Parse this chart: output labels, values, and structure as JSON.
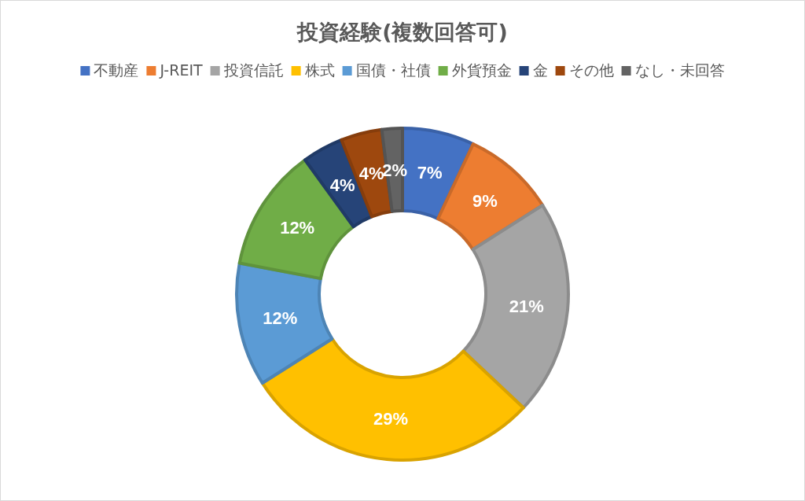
{
  "chart_data": {
    "type": "donut",
    "title": "投資経験(複数回答可)",
    "categories": [
      "不動産",
      "J-REIT",
      "投資信託",
      "株式",
      "国債・社債",
      "外貨預金",
      "金",
      "その他",
      "なし・未回答"
    ],
    "values": [
      7,
      9,
      21,
      29,
      12,
      12,
      4,
      4,
      2
    ],
    "colors": [
      "#4472c4",
      "#ed7d31",
      "#a5a5a5",
      "#ffc000",
      "#5b9bd5",
      "#70ad47",
      "#264478",
      "#9e480e",
      "#636363"
    ],
    "value_labels": [
      "7%",
      "9%",
      "21%",
      "29%",
      "12%",
      "12%",
      "4%",
      "4%",
      "2%"
    ],
    "legend": "top"
  }
}
